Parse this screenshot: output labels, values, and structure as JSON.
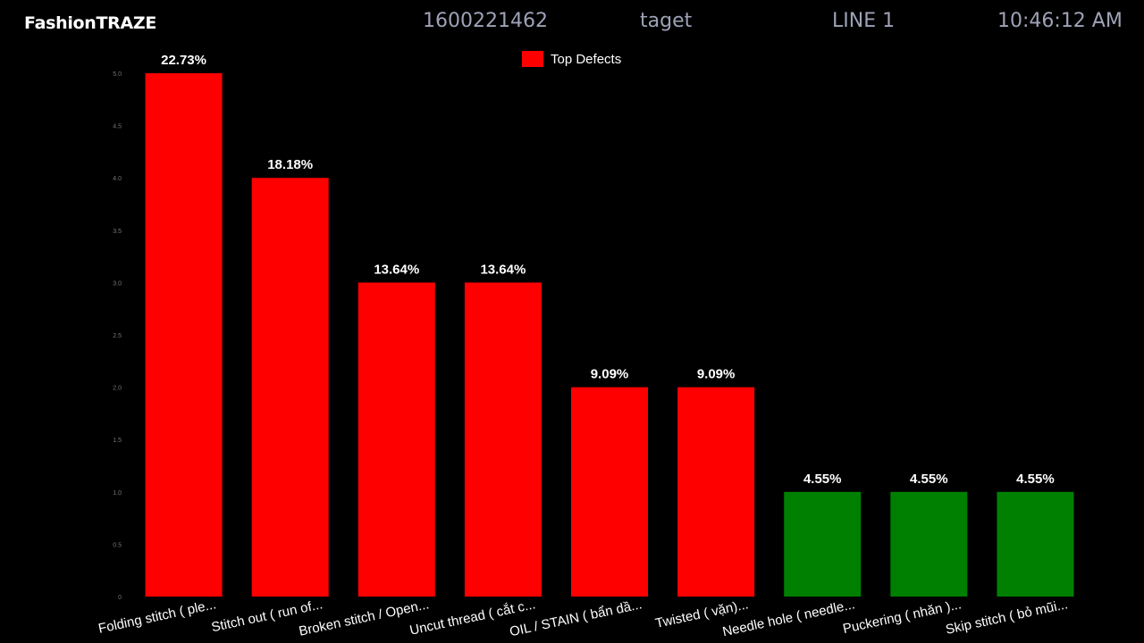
{
  "header": {
    "brand": "FashionTRAZE",
    "order_id": "1600221462",
    "target": "taget",
    "line": "LINE 1",
    "time": "10:46:12 AM"
  },
  "colors": {
    "background": "#000000",
    "top_defect": "#ff0000",
    "other_defect": "#008000",
    "header_text": "#9ea2b6"
  },
  "chart_data": {
    "type": "bar",
    "legend": {
      "label": "Top Defects",
      "placement": "top-center"
    },
    "ylim": [
      0,
      5
    ],
    "yticks": [
      "0",
      "0.5",
      "1.0",
      "1.5",
      "2.0",
      "2.5",
      "3.0",
      "3.5",
      "4.0",
      "4.5",
      "5.0"
    ],
    "grid": false,
    "categories": [
      "Folding stitch ( ple...",
      "Stitch out  ( run of...",
      "Broken stitch / Open...",
      "Uncut thread ( cắt c...",
      "OIL / STAIN ( bẩn dầ...",
      "Twisted ( vặn)...",
      "Needle hole ( needle...",
      "Puckering ( nhăn )...",
      "Skip stitch ( bỏ mũi..."
    ],
    "values": [
      5,
      4,
      3,
      3,
      2,
      2,
      1,
      1,
      1
    ],
    "labels": [
      "22.73%",
      "18.18%",
      "13.64%",
      "13.64%",
      "9.09%",
      "9.09%",
      "4.55%",
      "4.55%",
      "4.55%"
    ],
    "is_top": [
      true,
      true,
      true,
      true,
      true,
      true,
      false,
      false,
      false
    ]
  }
}
